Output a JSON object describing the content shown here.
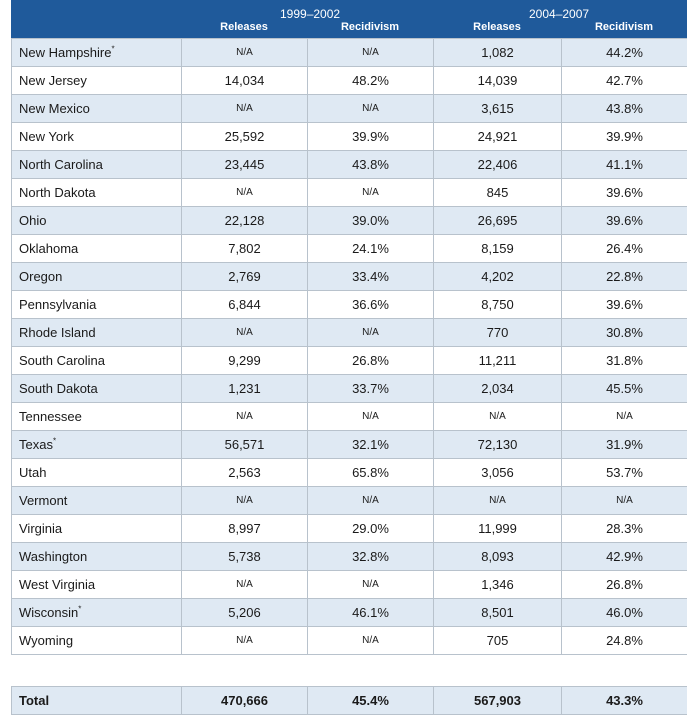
{
  "header": {
    "period1": "1999–2002",
    "period2": "2004–2007",
    "col_releases": "Releases",
    "col_recidivism": "Recidivism"
  },
  "rows": [
    {
      "state": "New Hampshire",
      "note": "*",
      "r1": "N/A",
      "p1": "N/A",
      "r2": "1,082",
      "p2": "44.2%"
    },
    {
      "state": "New Jersey",
      "note": "",
      "r1": "14,034",
      "p1": "48.2%",
      "r2": "14,039",
      "p2": "42.7%"
    },
    {
      "state": "New Mexico",
      "note": "",
      "r1": "N/A",
      "p1": "N/A",
      "r2": "3,615",
      "p2": "43.8%"
    },
    {
      "state": "New York",
      "note": "",
      "r1": "25,592",
      "p1": "39.9%",
      "r2": "24,921",
      "p2": "39.9%"
    },
    {
      "state": "North Carolina",
      "note": "",
      "r1": "23,445",
      "p1": "43.8%",
      "r2": "22,406",
      "p2": "41.1%"
    },
    {
      "state": "North Dakota",
      "note": "",
      "r1": "N/A",
      "p1": "N/A",
      "r2": "845",
      "p2": "39.6%"
    },
    {
      "state": "Ohio",
      "note": "",
      "r1": "22,128",
      "p1": "39.0%",
      "r2": "26,695",
      "p2": "39.6%"
    },
    {
      "state": "Oklahoma",
      "note": "",
      "r1": "7,802",
      "p1": "24.1%",
      "r2": "8,159",
      "p2": "26.4%"
    },
    {
      "state": "Oregon",
      "note": "",
      "r1": "2,769",
      "p1": "33.4%",
      "r2": "4,202",
      "p2": "22.8%"
    },
    {
      "state": "Pennsylvania",
      "note": "",
      "r1": "6,844",
      "p1": "36.6%",
      "r2": "8,750",
      "p2": "39.6%"
    },
    {
      "state": "Rhode Island",
      "note": "",
      "r1": "N/A",
      "p1": "N/A",
      "r2": "770",
      "p2": "30.8%"
    },
    {
      "state": "South Carolina",
      "note": "",
      "r1": "9,299",
      "p1": "26.8%",
      "r2": "11,211",
      "p2": "31.8%"
    },
    {
      "state": "South Dakota",
      "note": "",
      "r1": "1,231",
      "p1": "33.7%",
      "r2": "2,034",
      "p2": "45.5%"
    },
    {
      "state": "Tennessee",
      "note": "",
      "r1": "N/A",
      "p1": "N/A",
      "r2": "N/A",
      "p2": "N/A"
    },
    {
      "state": "Texas",
      "note": "*",
      "r1": "56,571",
      "p1": "32.1%",
      "r2": "72,130",
      "p2": "31.9%"
    },
    {
      "state": "Utah",
      "note": "",
      "r1": "2,563",
      "p1": "65.8%",
      "r2": "3,056",
      "p2": "53.7%"
    },
    {
      "state": "Vermont",
      "note": "",
      "r1": "N/A",
      "p1": "N/A",
      "r2": "N/A",
      "p2": "N/A"
    },
    {
      "state": "Virginia",
      "note": "",
      "r1": "8,997",
      "p1": "29.0%",
      "r2": "11,999",
      "p2": "28.3%"
    },
    {
      "state": "Washington",
      "note": "",
      "r1": "5,738",
      "p1": "32.8%",
      "r2": "8,093",
      "p2": "42.9%"
    },
    {
      "state": "West Virginia",
      "note": "",
      "r1": "N/A",
      "p1": "N/A",
      "r2": "1,346",
      "p2": "26.8%"
    },
    {
      "state": "Wisconsin",
      "note": "*",
      "r1": "5,206",
      "p1": "46.1%",
      "r2": "8,501",
      "p2": "46.0%"
    },
    {
      "state": "Wyoming",
      "note": "",
      "r1": "N/A",
      "p1": "N/A",
      "r2": "705",
      "p2": "24.8%"
    }
  ],
  "total": {
    "label": "Total",
    "r1": "470,666",
    "p1": "45.4%",
    "r2": "567,903",
    "p2": "43.3%"
  },
  "colors": {
    "header_bg": "#1f5a9b",
    "shaded_row": "#dfe9f3",
    "border": "#b8c2cc"
  }
}
